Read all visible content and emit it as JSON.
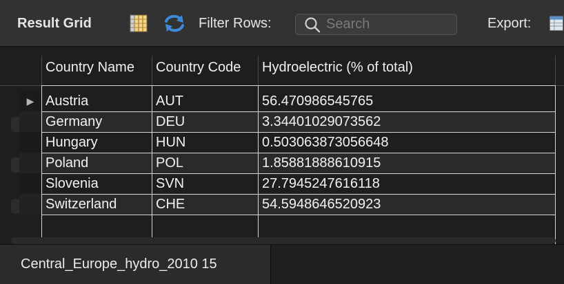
{
  "toolbar": {
    "title": "Result Grid",
    "grid_icon": "grid-layout-icon",
    "refresh_icon": "refresh-icon",
    "filter_label": "Filter Rows:",
    "search_placeholder": "Search",
    "search_value": "",
    "export_label": "Export:",
    "export_icon": "export-table-icon"
  },
  "grid": {
    "columns": [
      "Country Name",
      "Country Code",
      "Hydroelectric (% of total)"
    ],
    "rows": [
      [
        "Austria",
        "AUT",
        "56.470986545765"
      ],
      [
        "Germany",
        "DEU",
        "3.34401029073562"
      ],
      [
        "Hungary",
        "HUN",
        "0.503063873056648"
      ],
      [
        "Poland",
        "POL",
        "1.85881888610915"
      ],
      [
        "Slovenia",
        "SVN",
        "27.7945247616118"
      ],
      [
        "Switzerland",
        "CHE",
        "54.5948646520923"
      ]
    ],
    "selected_row_marker": "▶"
  },
  "tabs": [
    {
      "label": "Central_Europe_hydro_2010 15"
    }
  ],
  "colors": {
    "toolbar_bg": "#323233",
    "grid_bg": "#1e1e1f",
    "alt_row_bg": "#2a2a2c",
    "refresh_accent": "#3d8bd8",
    "grid_icon_accent": "#d9a640"
  }
}
